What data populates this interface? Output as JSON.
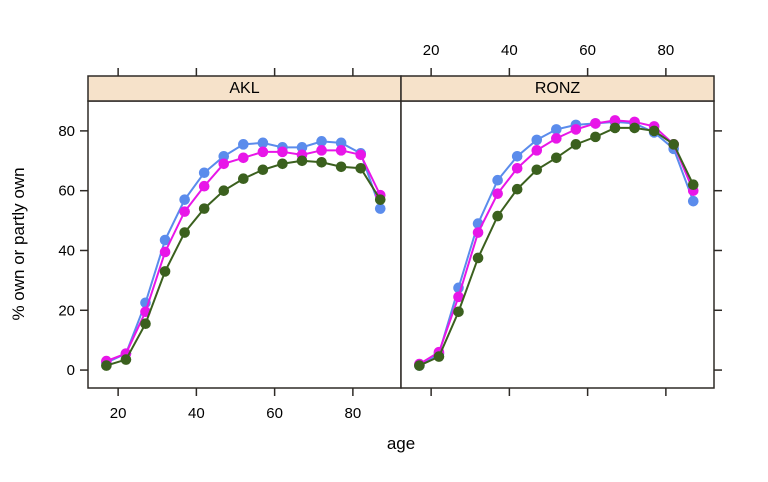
{
  "figure": {
    "background": "#FFFFFF",
    "strip_fill": "#F6E2CA",
    "border_color": "#2E2A26",
    "text_color": "#000000"
  },
  "chart_data": {
    "type": "line",
    "title": "",
    "xlabel": "age",
    "ylabel": "% own or partly own",
    "grid": false,
    "legend_position": "none",
    "point_style": "filled-circle",
    "x": [
      17,
      22,
      27,
      32,
      37,
      42,
      47,
      52,
      57,
      62,
      67,
      72,
      77,
      82,
      87
    ],
    "x_ticks": [
      20,
      40,
      60,
      80
    ],
    "y_ticks": [
      0,
      20,
      40,
      60,
      80
    ],
    "xlim": [
      12.3,
      92.3
    ],
    "ylim": [
      -6,
      90
    ],
    "panels": [
      {
        "label": "AKL",
        "series": [
          {
            "name": "blue",
            "color": "#5B8CEC",
            "values": [
              2.5,
              5.5,
              22.5,
              43.5,
              57,
              66,
              71.5,
              75.5,
              76,
              74.5,
              74.5,
              76.5,
              76,
              72.5,
              54
            ]
          },
          {
            "name": "magenta",
            "color": "#E816E8",
            "values": [
              3,
              5.5,
              19.5,
              39.5,
              53,
              61.5,
              69,
              71,
              73,
              73,
              72,
              73.5,
              73.5,
              72,
              58.5
            ]
          },
          {
            "name": "dark-green",
            "color": "#3B601E",
            "values": [
              1.5,
              3.5,
              15.5,
              33,
              46,
              54,
              60,
              64,
              67,
              69,
              70,
              69.5,
              68,
              67.5,
              57
            ]
          }
        ]
      },
      {
        "label": "RONZ",
        "series": [
          {
            "name": "blue",
            "color": "#5B8CEC",
            "values": [
              1.5,
              5.5,
              27.5,
              49,
              63.5,
              71.5,
              77,
              80.5,
              82,
              82.5,
              83,
              82.5,
              79.5,
              74,
              56.5
            ]
          },
          {
            "name": "magenta",
            "color": "#E816E8",
            "values": [
              2,
              6,
              24.5,
              46,
              59,
              67.5,
              73.5,
              77.5,
              80.5,
              82.5,
              83.5,
              83,
              81.5,
              75.5,
              60
            ]
          },
          {
            "name": "dark-green",
            "color": "#3B601E",
            "values": [
              1.5,
              4.5,
              19.5,
              37.5,
              51.5,
              60.5,
              67,
              71,
              75.5,
              78,
              81,
              81,
              80,
              75.5,
              62
            ]
          }
        ]
      }
    ]
  }
}
